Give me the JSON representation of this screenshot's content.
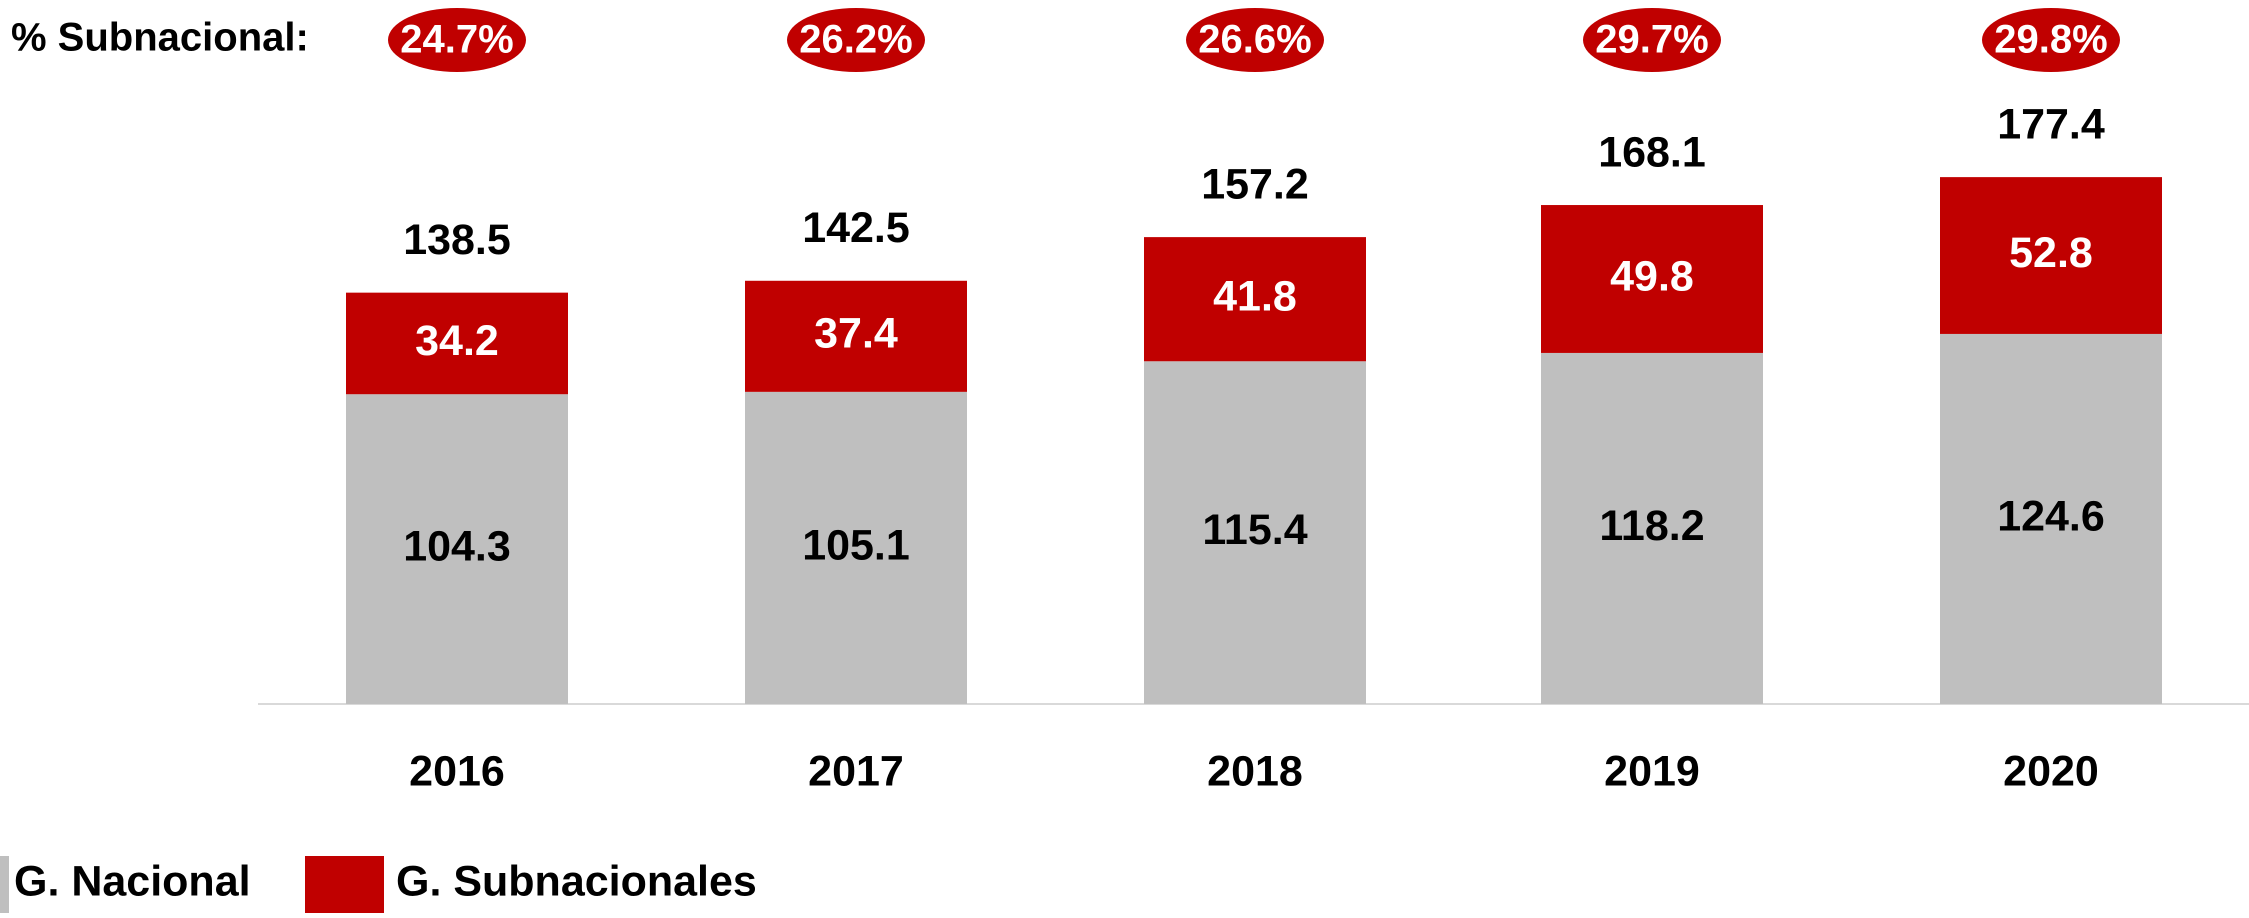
{
  "chart_data": {
    "type": "stacked_bar",
    "categories": [
      "2016",
      "2017",
      "2018",
      "2019",
      "2020"
    ],
    "series": [
      {
        "name": "G. Nacional",
        "color": "#bfbfbf",
        "values": [
          104.3,
          105.1,
          115.4,
          118.2,
          124.6
        ]
      },
      {
        "name": "G. Subnacionales",
        "color": "#c00000",
        "values": [
          34.2,
          37.4,
          41.8,
          49.8,
          52.8
        ]
      }
    ],
    "totals": [
      138.5,
      142.5,
      157.2,
      168.1,
      177.4
    ],
    "share": {
      "label": "% Subnacional:",
      "color": "#c00000",
      "values": [
        24.7,
        26.2,
        26.6,
        29.7,
        29.8
      ],
      "value_labels": [
        "24.7%",
        "26.2%",
        "26.6%",
        "29.7%",
        "29.8%"
      ]
    }
  }
}
